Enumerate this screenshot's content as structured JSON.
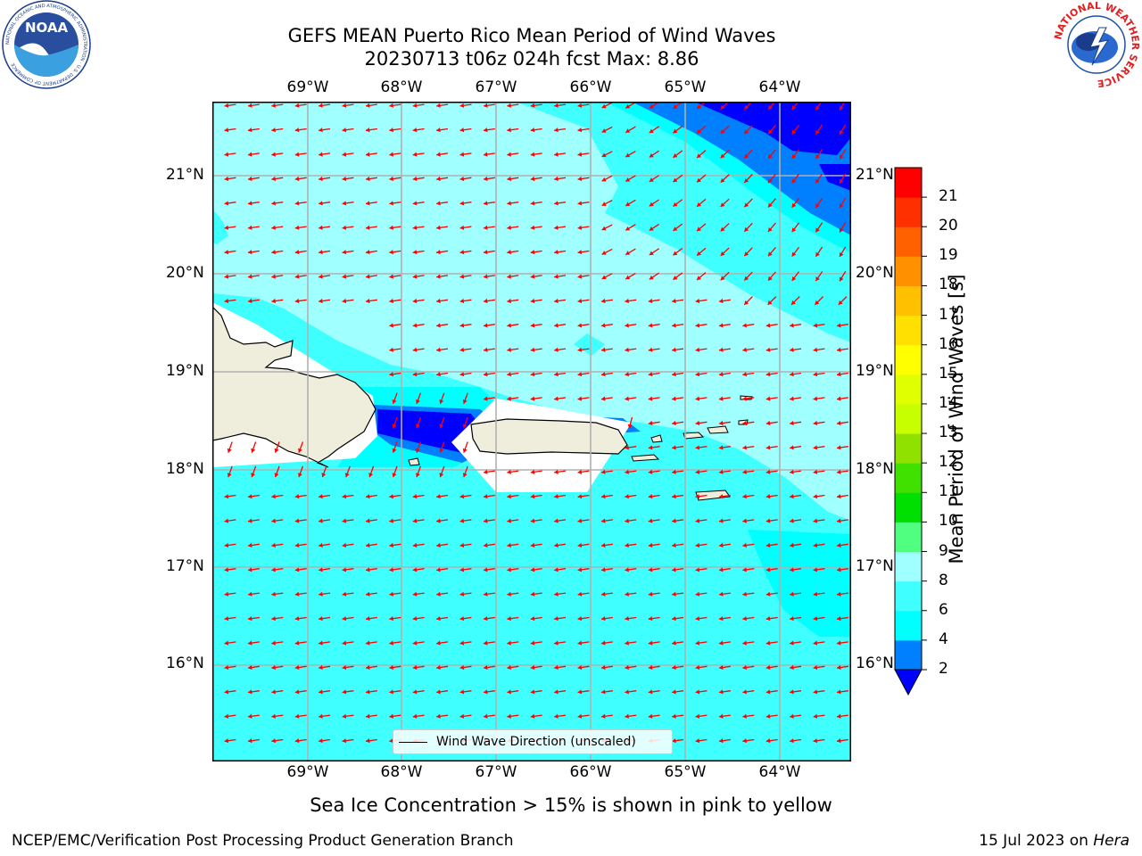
{
  "title": {
    "line1": "GEFS MEAN Puerto Rico Mean Period of Wind Waves",
    "line2": "20230713 t06z 024h fcst   Max: 8.86"
  },
  "logos": {
    "noaa_text": "NOAA",
    "noaa_ring": "NATIONAL OCEANIC AND ATMOSPHERIC ADMINISTRATION · U.S. DEPARTMENT OF COMMERCE",
    "nws_ring": "NATIONAL WEATHER SERVICE"
  },
  "map": {
    "lon_labels": [
      "69°W",
      "68°W",
      "67°W",
      "66°W",
      "65°W",
      "64°W"
    ],
    "lat_labels": [
      "21°N",
      "20°N",
      "19°N",
      "18°N",
      "17°N",
      "16°N"
    ],
    "legend_label": "Wind Wave Direction (unscaled)",
    "arrow_color": "#ff0000"
  },
  "colorbar": {
    "label": "Mean Period of Wind Waves [s]",
    "ticks": [
      "2",
      "4",
      "6",
      "8",
      "9",
      "10",
      "11",
      "12",
      "13",
      "14",
      "15",
      "16",
      "17",
      "18",
      "19",
      "20",
      "21"
    ],
    "colors": [
      "#0000ff",
      "#0080ff",
      "#00ffff",
      "#40ffff",
      "#a0ffff",
      "#50ff80",
      "#00e000",
      "#40e000",
      "#90e000",
      "#c8ff00",
      "#e0ff00",
      "#ffff00",
      "#ffe000",
      "#ffc000",
      "#ff9000",
      "#ff6000",
      "#ff3000",
      "#ff0000"
    ]
  },
  "caption": "Sea Ice Concentration > 15% is shown in pink to yellow",
  "footer": {
    "left": "NCEP/EMC/Verification Post Processing Product Generation Branch",
    "right_date": "15 Jul 2023 on ",
    "right_host": "Hera"
  }
}
